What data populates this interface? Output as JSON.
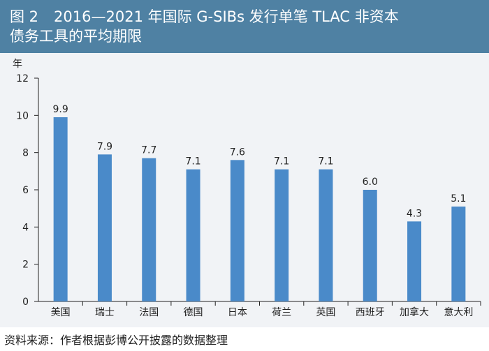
{
  "figure": {
    "label": "图 2",
    "title_line1": "2016—2021 年国际 G-SIBs 发行单笔 TLAC 非资本",
    "title_line2": "债务工具的平均期限",
    "source": "资料来源：作者根据彭博公开披露的数据整理"
  },
  "colors": {
    "header_bg": "#4f81a3",
    "plot_bg": "#f1f3f6",
    "bar": "#4a8ac9",
    "axis": "#222222"
  },
  "chart_data": {
    "type": "bar",
    "title": "2016—2021 年国际 G-SIBs 发行单笔 TLAC 非资本债务工具的平均期限",
    "categories": [
      "美国",
      "瑞士",
      "法国",
      "德国",
      "日本",
      "荷兰",
      "英国",
      "西班牙",
      "加拿大",
      "意大利"
    ],
    "values": [
      9.9,
      7.9,
      7.7,
      7.1,
      7.6,
      7.1,
      7.1,
      6.0,
      4.3,
      5.1
    ],
    "value_labels": [
      "9.9",
      "7.9",
      "7.7",
      "7.1",
      "7.6",
      "7.1",
      "7.1",
      "6.0",
      "4.3",
      "5.1"
    ],
    "ylabel": "年",
    "xlabel": "",
    "ylim": [
      0,
      12
    ],
    "yticks": [
      0,
      2,
      4,
      6,
      8,
      10,
      12
    ],
    "ytick_labels": [
      "0",
      "2",
      "4",
      "6",
      "8",
      "10",
      "12"
    ],
    "grid": false,
    "legend": "none"
  }
}
